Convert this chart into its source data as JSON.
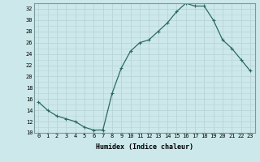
{
  "x": [
    0,
    1,
    2,
    3,
    4,
    5,
    6,
    7,
    8,
    9,
    10,
    11,
    12,
    13,
    14,
    15,
    16,
    17,
    18,
    19,
    20,
    21,
    22,
    23
  ],
  "y": [
    15.5,
    14.0,
    13.0,
    12.5,
    12.0,
    11.0,
    10.5,
    10.5,
    17.0,
    21.5,
    24.5,
    26.0,
    26.5,
    28.0,
    29.5,
    31.5,
    33.0,
    32.5,
    32.5,
    30.0,
    26.5,
    25.0,
    23.0,
    21.0
  ],
  "line_color": "#2d6b5e",
  "marker": "+",
  "marker_size": 3,
  "marker_lw": 0.8,
  "bg_color": "#cce8ea",
  "grid_color": "#b8d4d6",
  "xlabel": "Humidex (Indice chaleur)",
  "xlim": [
    -0.5,
    23.5
  ],
  "ylim": [
    10,
    33
  ],
  "yticks": [
    10,
    12,
    14,
    16,
    18,
    20,
    22,
    24,
    26,
    28,
    30,
    32
  ],
  "xtick_labels": [
    "0",
    "1",
    "2",
    "3",
    "4",
    "5",
    "6",
    "7",
    "8",
    "9",
    "10",
    "11",
    "12",
    "13",
    "14",
    "15",
    "16",
    "17",
    "18",
    "19",
    "20",
    "21",
    "22",
    "23"
  ],
  "tick_fontsize": 5.0,
  "xlabel_fontsize": 6.0,
  "line_width": 0.9
}
